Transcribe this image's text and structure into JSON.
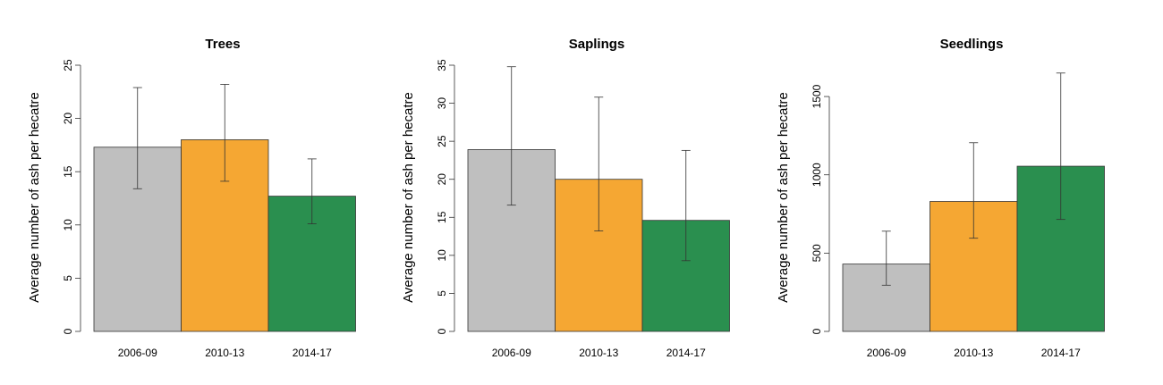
{
  "chart_data": [
    {
      "type": "bar",
      "title": "Trees",
      "xlabel": "",
      "ylabel": "Average number of ash per hecatre",
      "categories": [
        "2006-09",
        "2010-13",
        "2014-17"
      ],
      "values": [
        17.3,
        18.0,
        12.7
      ],
      "error_low": [
        13.4,
        14.1,
        10.1
      ],
      "error_high": [
        22.9,
        23.2,
        16.2
      ],
      "ylim": [
        0,
        25
      ],
      "yticks": [
        0,
        5,
        10,
        15,
        20,
        25
      ],
      "grid": false,
      "colors": [
        "#bfbfbf",
        "#f5a733",
        "#2a8f4f"
      ]
    },
    {
      "type": "bar",
      "title": "Saplings",
      "xlabel": "",
      "ylabel": "Average number of ash per hecatre",
      "categories": [
        "2006-09",
        "2010-13",
        "2014-17"
      ],
      "values": [
        23.9,
        20.0,
        14.6
      ],
      "error_low": [
        16.6,
        13.2,
        9.3
      ],
      "error_high": [
        34.8,
        30.8,
        23.8
      ],
      "ylim": [
        0,
        35
      ],
      "yticks": [
        0,
        5,
        10,
        15,
        20,
        25,
        30,
        35
      ],
      "grid": false,
      "colors": [
        "#bfbfbf",
        "#f5a733",
        "#2a8f4f"
      ]
    },
    {
      "type": "bar",
      "title": "Seedlings",
      "xlabel": "",
      "ylabel": "Average number of ash per hecatre",
      "categories": [
        "2006-09",
        "2010-13",
        "2014-17"
      ],
      "values": [
        430,
        830,
        1055
      ],
      "error_low": [
        295,
        595,
        715
      ],
      "error_high": [
        640,
        1205,
        1650
      ],
      "ylim": [
        0,
        1700
      ],
      "yticks": [
        0,
        500,
        1000,
        1500
      ],
      "grid": false,
      "colors": [
        "#bfbfbf",
        "#f5a733",
        "#2a8f4f"
      ]
    }
  ]
}
